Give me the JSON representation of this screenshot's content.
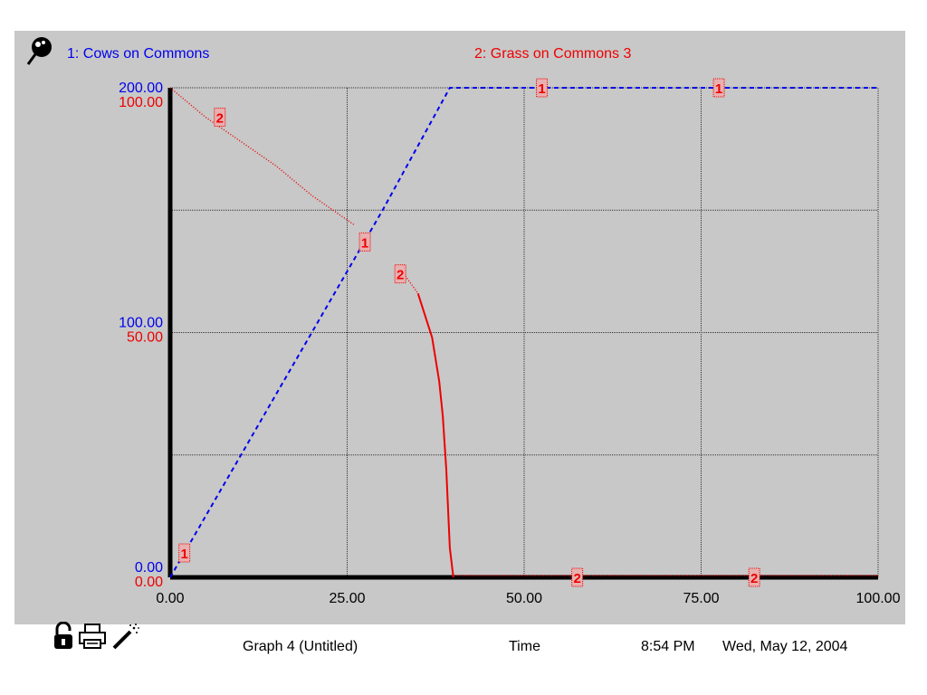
{
  "header": {
    "series1_label": "1: Cows on Commons",
    "series2_label": "2: Grass on Commons 3",
    "pin_icon": "pin-icon"
  },
  "footer": {
    "graph_title": "Graph 4 (Untitled)",
    "x_axis_label": "Time",
    "time": "8:54 PM",
    "date": "Wed, May 12, 2004",
    "icons": [
      "lock-icon",
      "print-icon",
      "magic-wand-icon"
    ]
  },
  "colors": {
    "series1": "#0000ee",
    "series2": "#ee0000",
    "background": "#c8c8c8",
    "axis": "#000000"
  },
  "chart_data": {
    "type": "line",
    "title": "",
    "xlabel": "Time",
    "xlim": [
      0,
      100
    ],
    "x_ticks": [
      "0.00",
      "25.00",
      "50.00",
      "75.00",
      "100.00"
    ],
    "grid": true,
    "y_axes": [
      {
        "series": "1",
        "prefix": "1:",
        "ylim": [
          0,
          200
        ],
        "tick_labels": [
          "0.00",
          "100.00",
          "200.00"
        ]
      },
      {
        "series": "2",
        "prefix": "2:",
        "ylim": [
          0,
          100
        ],
        "tick_labels": [
          "0.00",
          "50.00",
          "100.00"
        ]
      }
    ],
    "series": [
      {
        "name": "Cows on Commons",
        "id": "1",
        "axis": 0,
        "style": "dashed",
        "x": [
          0,
          10,
          20,
          30,
          39.5,
          50,
          60,
          70,
          80,
          90,
          100
        ],
        "values": [
          0,
          50,
          100,
          150,
          200,
          200,
          200,
          200,
          200,
          200,
          200
        ],
        "markers": [
          {
            "x": 2,
            "y": 10
          },
          {
            "x": 27.5,
            "y": 137
          },
          {
            "x": 52.5,
            "y": 200
          },
          {
            "x": 77.5,
            "y": 200
          }
        ]
      },
      {
        "name": "Grass on Commons 3",
        "id": "2",
        "axis": 1,
        "style": "dotted-then-solid",
        "x": [
          0,
          5,
          10,
          15,
          20,
          25,
          26,
          33,
          35,
          37,
          38,
          38.5,
          39,
          39.5,
          40,
          50,
          60,
          70,
          80,
          90,
          100
        ],
        "values": [
          100,
          94,
          89,
          84,
          78,
          73,
          72,
          62,
          58,
          49,
          40,
          33,
          22,
          6,
          0,
          0,
          0,
          0,
          0,
          0,
          0
        ],
        "break_after_index": 6,
        "solid_from_x": 35,
        "markers": [
          {
            "x": 7,
            "y": 94
          },
          {
            "x": 32.5,
            "y": 62
          },
          {
            "x": 57.5,
            "y": 0
          },
          {
            "x": 82.5,
            "y": 0
          }
        ]
      }
    ]
  }
}
